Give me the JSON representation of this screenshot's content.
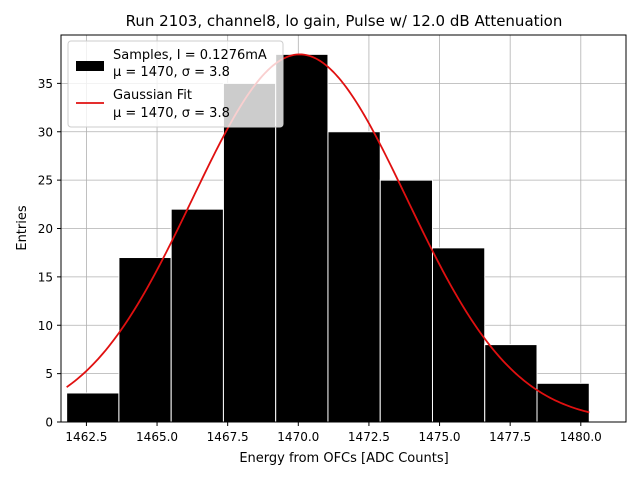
{
  "chart_data": {
    "type": "bar",
    "title": "Run 2103, channel8, lo gain, Pulse w/ 12.0 dB Attenuation",
    "xlabel": "Energy from OFCs [ADC Counts]",
    "ylabel": "Entries",
    "xlim": [
      1461.6,
      1481.6
    ],
    "ylim": [
      0,
      40
    ],
    "xticks": [
      1462.5,
      1465.0,
      1467.5,
      1470.0,
      1472.5,
      1475.0,
      1477.5,
      1480.0
    ],
    "xtick_labels": [
      "1462.5",
      "1465.0",
      "1467.5",
      "1470.0",
      "1472.5",
      "1475.0",
      "1477.5",
      "1480.0"
    ],
    "yticks": [
      0,
      5,
      10,
      15,
      20,
      25,
      30,
      35
    ],
    "ytick_labels": [
      "0",
      "5",
      "10",
      "15",
      "20",
      "25",
      "30",
      "35"
    ],
    "grid": true,
    "legend_position": "top-left",
    "histogram": {
      "bin_edges": [
        1461.8,
        1463.65,
        1465.5,
        1467.35,
        1469.2,
        1471.05,
        1472.9,
        1474.75,
        1476.6,
        1478.45,
        1480.3
      ],
      "counts": [
        3,
        17,
        22,
        35,
        38,
        30,
        25,
        18,
        8,
        4
      ],
      "color": "#000000",
      "edge_color": "#ffffff"
    },
    "fit": {
      "mu": 1470.05,
      "sigma": 3.8,
      "amplitude": 38,
      "x_range": [
        1461.8,
        1480.3
      ],
      "color": "#e01010"
    },
    "legend": {
      "samples_label_line1": "Samples, I = 0.1276mA",
      "samples_label_line2": "μ = 1470, σ = 3.8",
      "fit_label_line1": "Gaussian Fit",
      "fit_label_line2": "μ = 1470, σ = 3.8"
    }
  }
}
